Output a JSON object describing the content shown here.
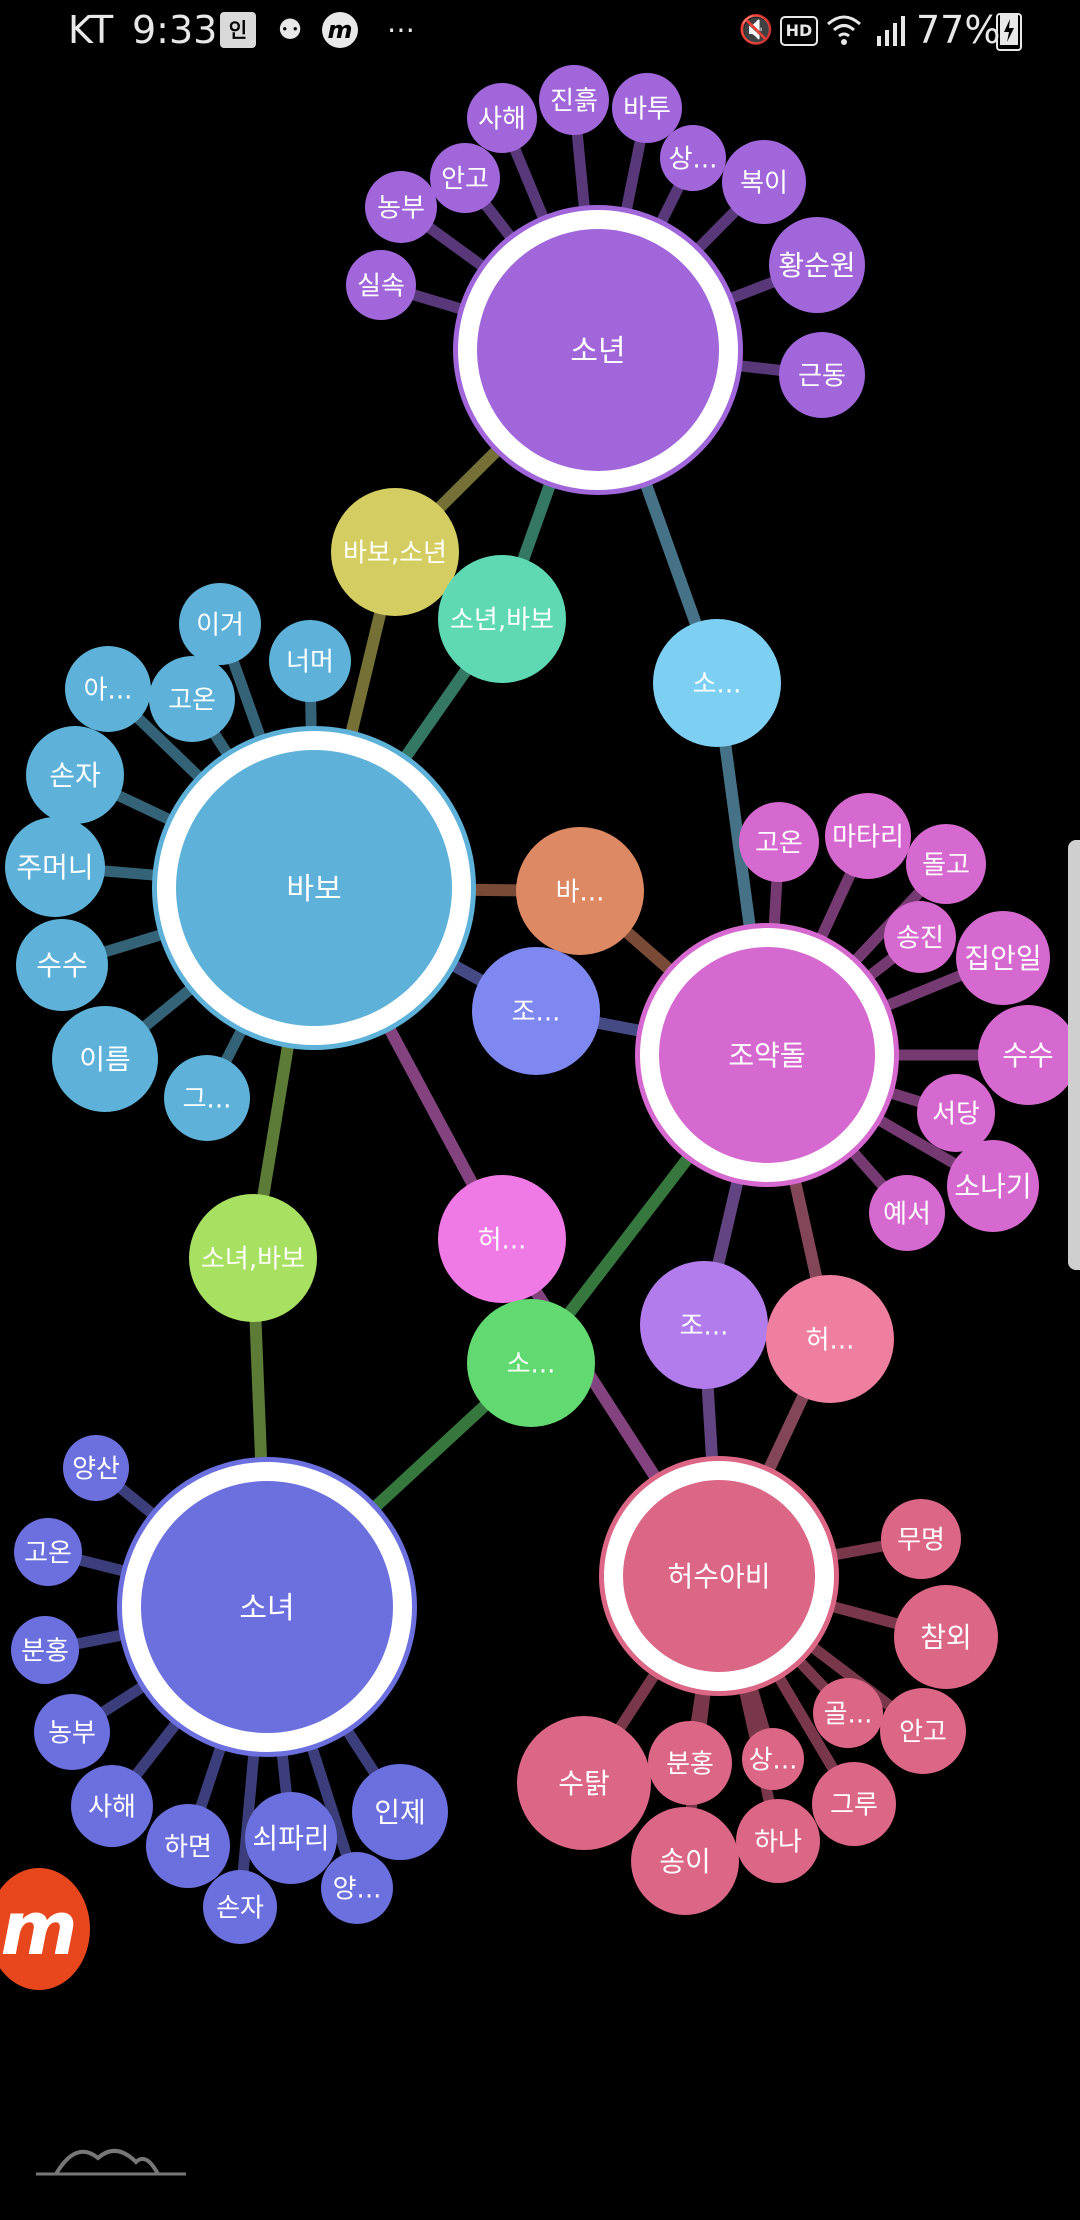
{
  "status_bar": {
    "carrier": "KT",
    "time": "9:33",
    "battery": "77%",
    "left_icons": [
      "sim-icon",
      "bixby-icon",
      "m-app-icon",
      "more-dots-icon"
    ],
    "right_icons": [
      "mute-icon",
      "hd-icon",
      "wifi-icon",
      "signal-icon",
      "battery-charging-icon"
    ]
  },
  "graph": {
    "hubs": [
      {
        "id": "sonyeon",
        "label": "소년",
        "color": "#a066da",
        "leaves": [
          {
            "label": "사해"
          },
          {
            "label": "진흙"
          },
          {
            "label": "바투"
          },
          {
            "label": "안고"
          },
          {
            "label": "상..."
          },
          {
            "label": "복이"
          },
          {
            "label": "농부"
          },
          {
            "label": "황순원"
          },
          {
            "label": "실속"
          },
          {
            "label": "근동"
          }
        ]
      },
      {
        "id": "babo",
        "label": "바보",
        "color": "#5eb2d9",
        "leaves": [
          {
            "label": "이거"
          },
          {
            "label": "너머"
          },
          {
            "label": "아..."
          },
          {
            "label": "고온"
          },
          {
            "label": "손자"
          },
          {
            "label": "주머니"
          },
          {
            "label": "수수"
          },
          {
            "label": "이름"
          },
          {
            "label": "그..."
          }
        ]
      },
      {
        "id": "joyakdol",
        "label": "조약돌",
        "color": "#d669cf",
        "leaves": [
          {
            "label": "고온"
          },
          {
            "label": "마타리"
          },
          {
            "label": "돌고"
          },
          {
            "label": "송진"
          },
          {
            "label": "집안일"
          },
          {
            "label": "수수"
          },
          {
            "label": "서당"
          },
          {
            "label": "소나기"
          },
          {
            "label": "예서"
          }
        ]
      },
      {
        "id": "sonyeo",
        "label": "소녀",
        "color": "#6b70de",
        "leaves": [
          {
            "label": "양산"
          },
          {
            "label": "고온"
          },
          {
            "label": "분홍"
          },
          {
            "label": "농부"
          },
          {
            "label": "사해"
          },
          {
            "label": "하면"
          },
          {
            "label": "쇠파리"
          },
          {
            "label": "인제"
          },
          {
            "label": "손자"
          },
          {
            "label": "양..."
          }
        ]
      },
      {
        "id": "heosuabi",
        "label": "허수아비",
        "color": "#dc6685",
        "leaves": [
          {
            "label": "무명"
          },
          {
            "label": "참외"
          },
          {
            "label": "골..."
          },
          {
            "label": "안고"
          },
          {
            "label": "분홍"
          },
          {
            "label": "상..."
          },
          {
            "label": "그루"
          },
          {
            "label": "수탉"
          },
          {
            "label": "하나"
          },
          {
            "label": "송이"
          }
        ]
      }
    ],
    "connectors": [
      {
        "label": "바보,소년",
        "color": "#d4cd62"
      },
      {
        "label": "소년,바보",
        "color": "#5fd9b3"
      },
      {
        "label": "소...",
        "color": "#7ed0f3"
      },
      {
        "label": "바...",
        "color": "#dc8964"
      },
      {
        "label": "조...",
        "color": "#7f87f0"
      },
      {
        "label": "허...",
        "color": "#ef79e5"
      },
      {
        "label": "소녀,바보",
        "color": "#a8e062"
      },
      {
        "label": "소...",
        "color": "#63d971"
      },
      {
        "label": "조...",
        "color": "#b27ced"
      },
      {
        "label": "허...",
        "color": "#ef7f9e"
      }
    ]
  },
  "fab": {
    "label": "m"
  }
}
